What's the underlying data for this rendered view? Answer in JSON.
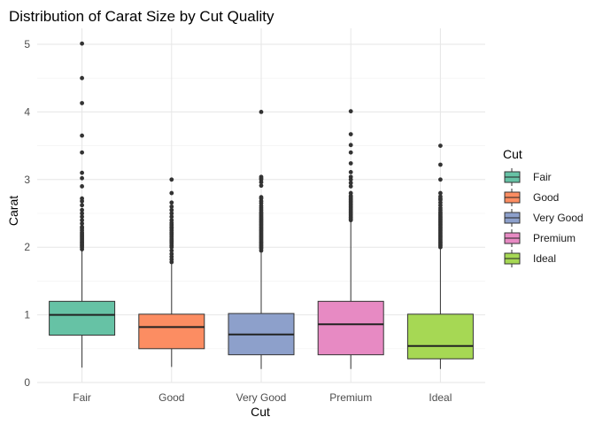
{
  "chart_data": {
    "type": "boxplot",
    "title": "Distribution of Carat Size by Cut Quality",
    "xlabel": "Cut",
    "ylabel": "Carat",
    "ylim": [
      0,
      5.2
    ],
    "yticks": [
      0,
      1,
      2,
      3,
      4,
      5
    ],
    "grid": true,
    "legend": {
      "title": "Cut",
      "position": "right"
    },
    "categories": [
      "Fair",
      "Good",
      "Very Good",
      "Premium",
      "Ideal"
    ],
    "colors": [
      "#66C2A5",
      "#FC8D62",
      "#8DA0CB",
      "#E78AC3",
      "#A6D854"
    ],
    "series": [
      {
        "name": "Fair",
        "whisker_low": 0.22,
        "q1": 0.7,
        "median": 1.0,
        "q3": 1.2,
        "whisker_high": 1.95,
        "outliers": [
          1.97,
          2.0,
          2.02,
          2.04,
          2.06,
          2.08,
          2.1,
          2.12,
          2.14,
          2.16,
          2.18,
          2.2,
          2.22,
          2.25,
          2.28,
          2.3,
          2.35,
          2.4,
          2.45,
          2.5,
          2.55,
          2.62,
          2.68,
          2.72,
          2.9,
          3.02,
          3.1,
          3.4,
          3.65,
          4.13,
          4.5,
          5.01
        ]
      },
      {
        "name": "Good",
        "whisker_low": 0.23,
        "q1": 0.5,
        "median": 0.82,
        "q3": 1.01,
        "whisker_high": 1.76,
        "outliers": [
          1.78,
          1.82,
          1.86,
          1.9,
          1.95,
          2.0,
          2.02,
          2.05,
          2.08,
          2.1,
          2.12,
          2.15,
          2.18,
          2.2,
          2.22,
          2.25,
          2.28,
          2.3,
          2.33,
          2.36,
          2.4,
          2.45,
          2.5,
          2.55,
          2.6,
          2.66,
          2.8,
          3.0
        ]
      },
      {
        "name": "Very Good",
        "whisker_low": 0.2,
        "q1": 0.41,
        "median": 0.71,
        "q3": 1.02,
        "whisker_high": 1.93,
        "outliers": [
          1.95,
          1.98,
          2.0,
          2.02,
          2.04,
          2.06,
          2.08,
          2.1,
          2.12,
          2.14,
          2.16,
          2.18,
          2.2,
          2.22,
          2.24,
          2.26,
          2.28,
          2.3,
          2.32,
          2.34,
          2.36,
          2.38,
          2.4,
          2.42,
          2.44,
          2.46,
          2.48,
          2.5,
          2.52,
          2.55,
          2.58,
          2.61,
          2.65,
          2.68,
          2.72,
          2.74,
          2.91,
          2.96,
          3.0,
          3.02,
          3.04,
          4.0
        ]
      },
      {
        "name": "Premium",
        "whisker_low": 0.2,
        "q1": 0.41,
        "median": 0.86,
        "q3": 1.2,
        "whisker_high": 2.38,
        "outliers": [
          2.4,
          2.42,
          2.44,
          2.46,
          2.48,
          2.5,
          2.52,
          2.54,
          2.56,
          2.58,
          2.6,
          2.62,
          2.64,
          2.66,
          2.68,
          2.7,
          2.72,
          2.74,
          2.76,
          2.8,
          2.9,
          2.95,
          3.0,
          3.04,
          3.11,
          3.24,
          3.4,
          3.51,
          3.67,
          4.01
        ]
      },
      {
        "name": "Ideal",
        "whisker_low": 0.2,
        "q1": 0.35,
        "median": 0.54,
        "q3": 1.01,
        "whisker_high": 1.98,
        "outliers": [
          2.0,
          2.02,
          2.04,
          2.06,
          2.08,
          2.1,
          2.12,
          2.14,
          2.16,
          2.18,
          2.2,
          2.22,
          2.24,
          2.26,
          2.28,
          2.3,
          2.32,
          2.34,
          2.36,
          2.38,
          2.4,
          2.42,
          2.44,
          2.46,
          2.48,
          2.5,
          2.52,
          2.55,
          2.58,
          2.62,
          2.66,
          2.7,
          2.72,
          2.75,
          2.8,
          3.0,
          3.22,
          3.5
        ]
      }
    ]
  }
}
